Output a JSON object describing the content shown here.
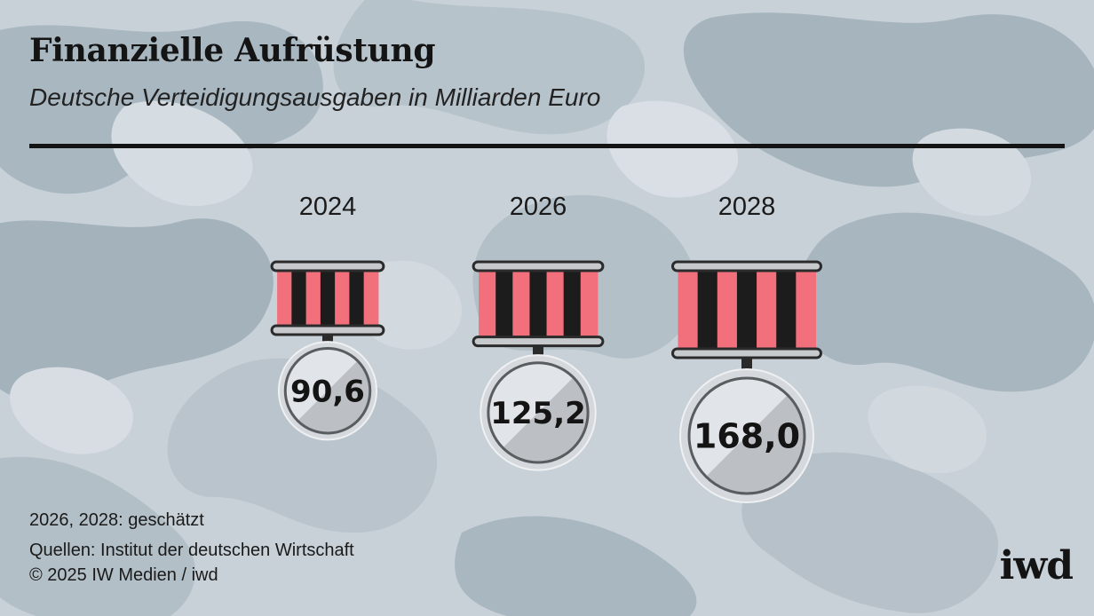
{
  "header": {
    "title": "Finanzielle Aufrüstung",
    "subtitle": "Deutsche Verteidigungsausgaben in Milliarden Euro"
  },
  "chart_data": {
    "type": "bar",
    "title": "Finanzielle Aufrüstung",
    "subtitle": "Deutsche Verteidigungsausgaben in Milliarden Euro",
    "categories": [
      "2024",
      "2026",
      "2028"
    ],
    "values": [
      90.6,
      125.2,
      168.0
    ],
    "value_labels": [
      "90,6",
      "125,2",
      "168,0"
    ],
    "xlabel": "",
    "ylabel": "",
    "grid": false,
    "legend": "none"
  },
  "colors": {
    "stripe_red": "#f2707c",
    "stripe_black": "#1c1c1c",
    "medal_light": "#e1e4e8",
    "medal_dark": "#bcbfc3",
    "text": "#141414"
  },
  "footer": {
    "note": "2026, 2028: geschätzt",
    "source": "Quellen: Institut der deutschen Wirtschaft",
    "copyright": "© 2025 IW Medien / iwd",
    "logo": "iwd"
  }
}
